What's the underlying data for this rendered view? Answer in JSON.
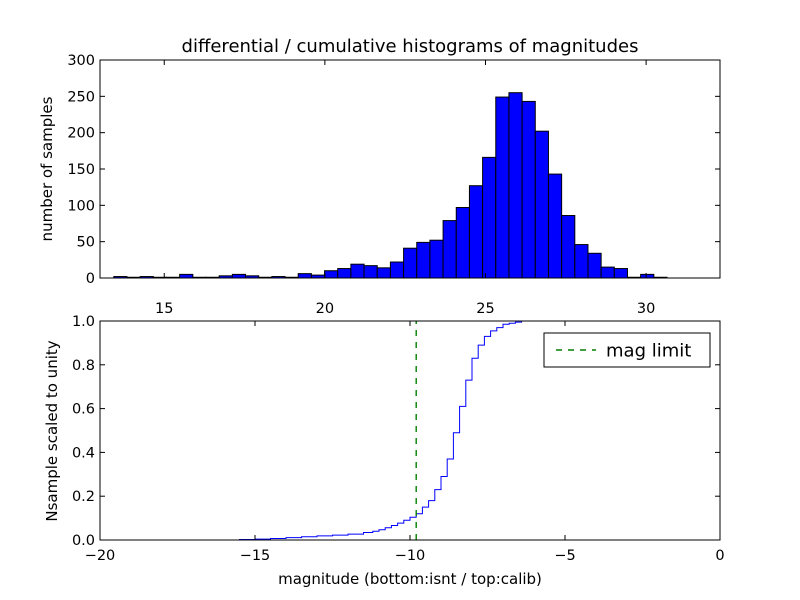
{
  "chart_data": [
    {
      "type": "bar",
      "title": "differential / cumulative histograms of magnitudes",
      "xlabel": "",
      "ylabel": "number of samples",
      "xlim": [
        13,
        32.3
      ],
      "ylim": [
        0,
        300
      ],
      "x_ticks": [
        "15",
        "20",
        "25",
        "30"
      ],
      "x_tick_values": [
        15,
        20,
        25,
        30
      ],
      "x_ticks_position": "top",
      "y_ticks": [
        "0",
        "50",
        "100",
        "150",
        "200",
        "250",
        "300"
      ],
      "y_tick_values": [
        0,
        50,
        100,
        150,
        200,
        250,
        300
      ],
      "bar_color": "#0000ff",
      "bin_edges": [
        13.43,
        13.84,
        14.25,
        14.66,
        15.07,
        15.48,
        15.89,
        16.3,
        16.71,
        17.12,
        17.53,
        17.94,
        18.35,
        18.76,
        19.17,
        19.58,
        19.99,
        20.4,
        20.81,
        21.22,
        21.63,
        22.04,
        22.45,
        22.86,
        23.27,
        23.68,
        24.09,
        24.5,
        24.91,
        25.32,
        25.73,
        26.14,
        26.55,
        26.96,
        27.37,
        27.78,
        28.19,
        28.6,
        29.01,
        29.42,
        29.83,
        30.24,
        30.65,
        31.06
      ],
      "values": [
        2,
        1,
        2,
        1,
        1,
        5,
        1,
        1,
        3,
        5,
        3,
        1,
        2,
        1,
        6,
        4,
        10,
        13,
        19,
        17,
        14,
        22,
        41,
        49,
        52,
        79,
        97,
        127,
        166,
        249,
        255,
        243,
        202,
        143,
        86,
        46,
        34,
        15,
        13,
        1,
        5,
        1,
        0
      ]
    },
    {
      "type": "line",
      "xlabel": "magnitude (bottom:isnt / top:calib)",
      "ylabel": "Nsample scaled to unity",
      "xlim": [
        -20,
        0
      ],
      "ylim": [
        0,
        1
      ],
      "x_ticks": [
        "−20",
        "−15",
        "−10",
        "−5",
        "0"
      ],
      "x_tick_values": [
        -20,
        -15,
        -10,
        -5,
        0
      ],
      "y_ticks": [
        "0.0",
        "0.2",
        "0.4",
        "0.6",
        "0.8",
        "1.0"
      ],
      "y_tick_values": [
        0,
        0.2,
        0.4,
        0.6,
        0.8,
        1.0
      ],
      "drawstyle": "steps",
      "series": [
        {
          "name": "",
          "color": "#0000ff",
          "style": "solid",
          "x": [
            -20,
            -15.5,
            -15,
            -14.5,
            -14,
            -13.5,
            -13,
            -12.5,
            -12,
            -11.5,
            -11.2,
            -11,
            -10.8,
            -10.6,
            -10.4,
            -10.2,
            -10.0,
            -9.8,
            -9.6,
            -9.4,
            -9.2,
            -9.0,
            -8.8,
            -8.6,
            -8.4,
            -8.2,
            -8.0,
            -7.8,
            -7.6,
            -7.4,
            -7.2,
            -7.0,
            -6.8,
            -6.6,
            -6.4,
            -6.2,
            -6.0,
            -5.8,
            -5.6,
            -5.0,
            0
          ],
          "y": [
            0.0,
            0.002,
            0.004,
            0.007,
            0.011,
            0.015,
            0.019,
            0.022,
            0.027,
            0.034,
            0.04,
            0.047,
            0.056,
            0.066,
            0.077,
            0.09,
            0.104,
            0.12,
            0.15,
            0.18,
            0.23,
            0.29,
            0.37,
            0.49,
            0.61,
            0.73,
            0.83,
            0.89,
            0.93,
            0.955,
            0.97,
            0.985,
            0.99,
            0.995,
            1.0,
            1.0,
            1.0,
            1.0,
            1.0,
            1.0,
            1.0
          ]
        },
        {
          "name": "mag limit",
          "color": "#007f00",
          "style": "dashed",
          "x": [
            -9.8,
            -9.8
          ],
          "y": [
            0,
            1
          ]
        }
      ],
      "legend": {
        "position": "top-right",
        "entries": [
          "mag limit"
        ]
      }
    }
  ]
}
